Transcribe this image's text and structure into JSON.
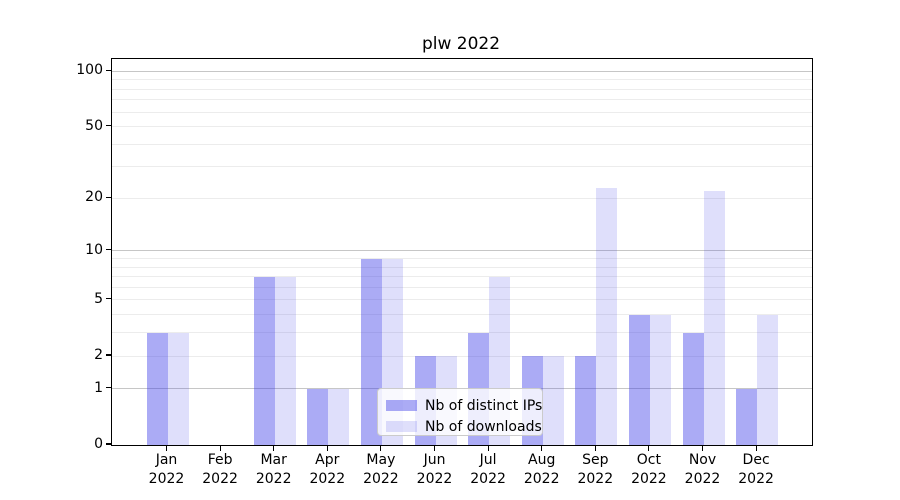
{
  "title": "plw 2022",
  "colors": {
    "ips": "rgba(55,55,230,0.42)",
    "downloads": "rgba(55,55,230,0.16)",
    "grid_major": "#c6c6c6",
    "grid_minor": "#ececec",
    "spine": "#000000",
    "background": "#ffffff"
  },
  "legend": {
    "items": [
      {
        "label": "Nb of distinct IPs",
        "series": "ips"
      },
      {
        "label": "Nb of downloads",
        "series": "downloads"
      }
    ]
  },
  "chart_data": {
    "type": "bar",
    "title": "plw 2022",
    "categories": [
      "Jan 2022",
      "Feb 2022",
      "Mar 2022",
      "Apr 2022",
      "May 2022",
      "Jun 2022",
      "Jul 2022",
      "Aug 2022",
      "Sep 2022",
      "Oct 2022",
      "Nov 2022",
      "Dec 2022"
    ],
    "series": [
      {
        "name": "Nb of distinct IPs",
        "values": [
          3,
          0,
          7,
          1,
          9,
          2,
          3,
          2,
          2,
          4,
          3,
          1
        ]
      },
      {
        "name": "Nb of downloads",
        "values": [
          3,
          0,
          7,
          1,
          9,
          2,
          7,
          2,
          23,
          4,
          22,
          4
        ]
      }
    ],
    "xlabel": "",
    "ylabel": "",
    "yscale": "log1p",
    "ylim": [
      0,
      116
    ],
    "yticks": [
      0,
      1,
      2,
      5,
      10,
      20,
      50,
      100
    ],
    "yticks_major_grid": [
      1,
      10,
      100
    ],
    "yticks_minor_grid": [
      2,
      3,
      4,
      5,
      6,
      7,
      8,
      9,
      20,
      30,
      40,
      50,
      60,
      70,
      80,
      90
    ],
    "grid": "on",
    "legend_position": "lower center"
  }
}
